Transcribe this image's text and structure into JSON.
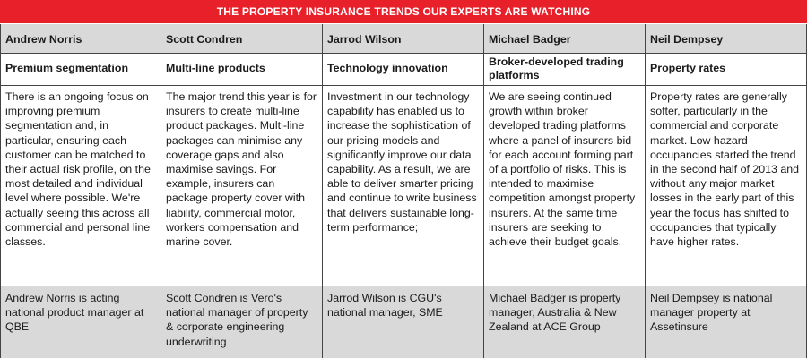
{
  "banner": {
    "title": "THE PROPERTY INSURANCE TRENDS OUR EXPERTS ARE WATCHING",
    "color": "#e8202a"
  },
  "columns": [
    {
      "name": "Andrew Norris",
      "topic": "Premium segmentation",
      "body": "There is an ongoing focus on improving premium segmentation and, in particular, ensuring each customer can be matched to their actual risk profile, on the most detailed and individual level where possible. We're actually seeing this across all commercial and personal line classes.",
      "bio": "Andrew Norris is acting national product manager at QBE"
    },
    {
      "name": "Scott Condren",
      "topic": "Multi-line products",
      "body": "The major trend this year is for insurers to create multi-line product packages. Multi-line packages can minimise any coverage gaps and also maximise savings. For example, insurers can package property cover with liability, commercial motor, workers compensation and marine cover.",
      "bio": "Scott Condren is Vero's national manager of property & corporate engineering underwriting"
    },
    {
      "name": "Jarrod Wilson",
      "topic": "Technology innovation",
      "body": "Investment in our technology capability has enabled us to increase the sophistication of our pricing models and significantly improve our data capability. As a result, we are able to deliver smarter pricing and continue to write business that delivers sustainable long-term performance;",
      "bio": "Jarrod Wilson is CGU's national manager, SME"
    },
    {
      "name": "Michael Badger",
      "topic": "Broker-developed trading platforms",
      "body": "We are seeing continued growth within broker developed trading platforms where a panel of insurers bid for each account forming part of a portfolio of risks. This is intended to maximise competition amongst property insurers. At the same time insurers are seeking to achieve their budget goals.",
      "bio": "Michael Badger is property manager, Australia & New Zealand at ACE Group"
    },
    {
      "name": "Neil Dempsey",
      "topic": "Property rates",
      "body": "Property rates are generally softer, particularly in the commercial and corporate market. Low hazard occupancies started the trend in the second half of 2013 and without any major market losses in the early part of this year the focus has shifted to occupancies that typically have higher rates.",
      "bio": "Neil Dempsey is national manager property at Assetinsure"
    }
  ]
}
